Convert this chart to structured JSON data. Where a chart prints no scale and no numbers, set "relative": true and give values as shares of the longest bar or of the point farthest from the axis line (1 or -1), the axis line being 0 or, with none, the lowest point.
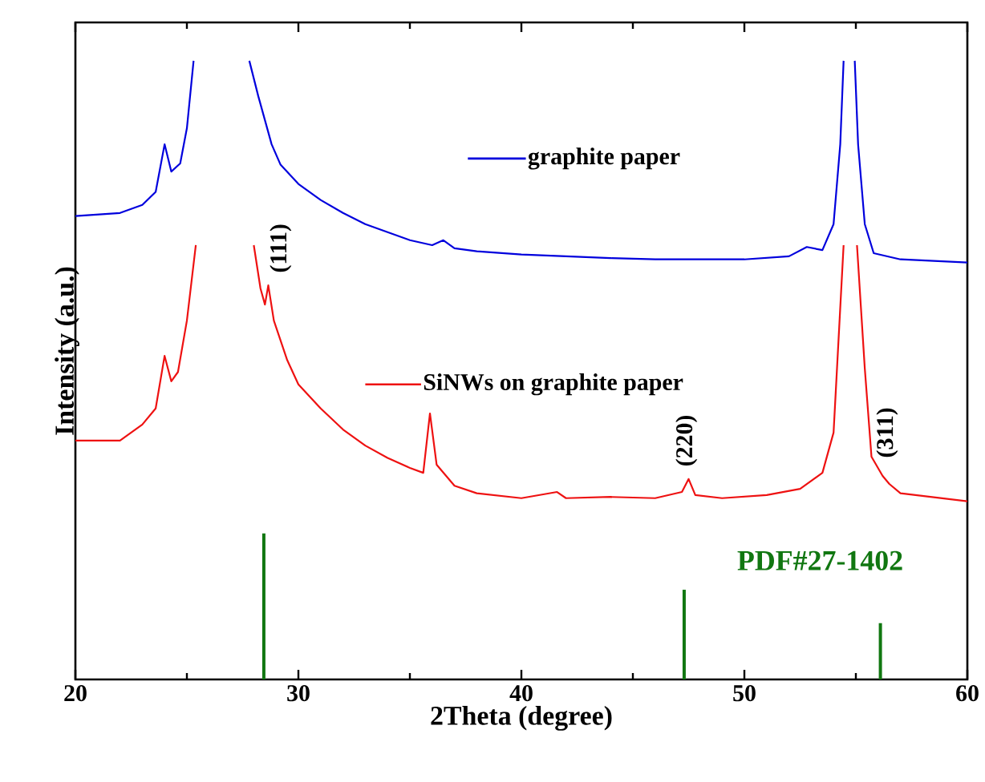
{
  "chart_data": {
    "type": "line",
    "relative": true,
    "xlabel": "2Theta (degree)",
    "ylabel": "Intensity (a.u.)",
    "xlim": [
      20,
      60
    ],
    "xticks": [
      20,
      30,
      40,
      50,
      60
    ],
    "series": [
      {
        "name": "graphite paper",
        "color": "#0000dd",
        "x": [
          20,
          22,
          23,
          23.6,
          24,
          24.3,
          24.7,
          25,
          25.3,
          26.5,
          27.8,
          28.2,
          28.8,
          29.2,
          30,
          31,
          32,
          33,
          34,
          35,
          36,
          36.5,
          37,
          38,
          40,
          42,
          44,
          46,
          48,
          50,
          52,
          52.8,
          53.5,
          54,
          54.3,
          54.45,
          54.7,
          54.95,
          55.1,
          55.4,
          55.8,
          57,
          60
        ],
        "values": [
          0.749,
          0.754,
          0.767,
          0.788,
          0.865,
          0.821,
          0.834,
          0.891,
          1,
          null,
          1,
          0.943,
          0.865,
          0.832,
          0.801,
          0.775,
          0.754,
          0.736,
          0.723,
          0.71,
          0.702,
          0.71,
          0.697,
          0.692,
          0.687,
          0.684,
          0.681,
          0.679,
          0.679,
          0.679,
          0.684,
          0.699,
          0.694,
          0.736,
          0.865,
          1,
          null,
          1,
          0.865,
          0.736,
          0.689,
          0.679,
          0.674
        ]
      },
      {
        "name": "SiNWs on graphite paper",
        "color": "#ee1111",
        "x": [
          20,
          22,
          23,
          23.6,
          24,
          24.3,
          24.6,
          25,
          25.4,
          26.7,
          28.0,
          28.3,
          28.5,
          28.65,
          28.9,
          29.5,
          30,
          31,
          32,
          33,
          34,
          35,
          35.6,
          35.9,
          36.2,
          37,
          38,
          40,
          41.6,
          42,
          44,
          46,
          47.2,
          47.5,
          47.8,
          49,
          51,
          52.5,
          53.5,
          54,
          54.45,
          54.75,
          55.05,
          55.4,
          55.7,
          56.2,
          56.5,
          57,
          60
        ],
        "values": [
          0.386,
          0.386,
          0.412,
          0.438,
          0.523,
          0.482,
          0.497,
          0.58,
          0.702,
          null,
          0.702,
          0.632,
          0.606,
          0.637,
          0.58,
          0.516,
          0.477,
          0.438,
          0.404,
          0.378,
          0.358,
          0.342,
          0.334,
          0.43,
          0.347,
          0.313,
          0.301,
          0.293,
          0.303,
          0.293,
          0.295,
          0.293,
          0.303,
          0.324,
          0.298,
          0.293,
          0.298,
          0.308,
          0.334,
          0.399,
          0.702,
          null,
          0.702,
          0.503,
          0.36,
          0.329,
          0.316,
          0.301,
          0.288
        ]
      },
      {
        "name": "PDF#27-1402",
        "type": "bar",
        "color": "#117711",
        "x": [
          28.45,
          47.3,
          56.1
        ],
        "values": [
          0.236,
          0.145,
          0.091
        ]
      }
    ],
    "legend": "top",
    "annotations": [
      "(111)",
      "(220)",
      "(311)"
    ]
  }
}
